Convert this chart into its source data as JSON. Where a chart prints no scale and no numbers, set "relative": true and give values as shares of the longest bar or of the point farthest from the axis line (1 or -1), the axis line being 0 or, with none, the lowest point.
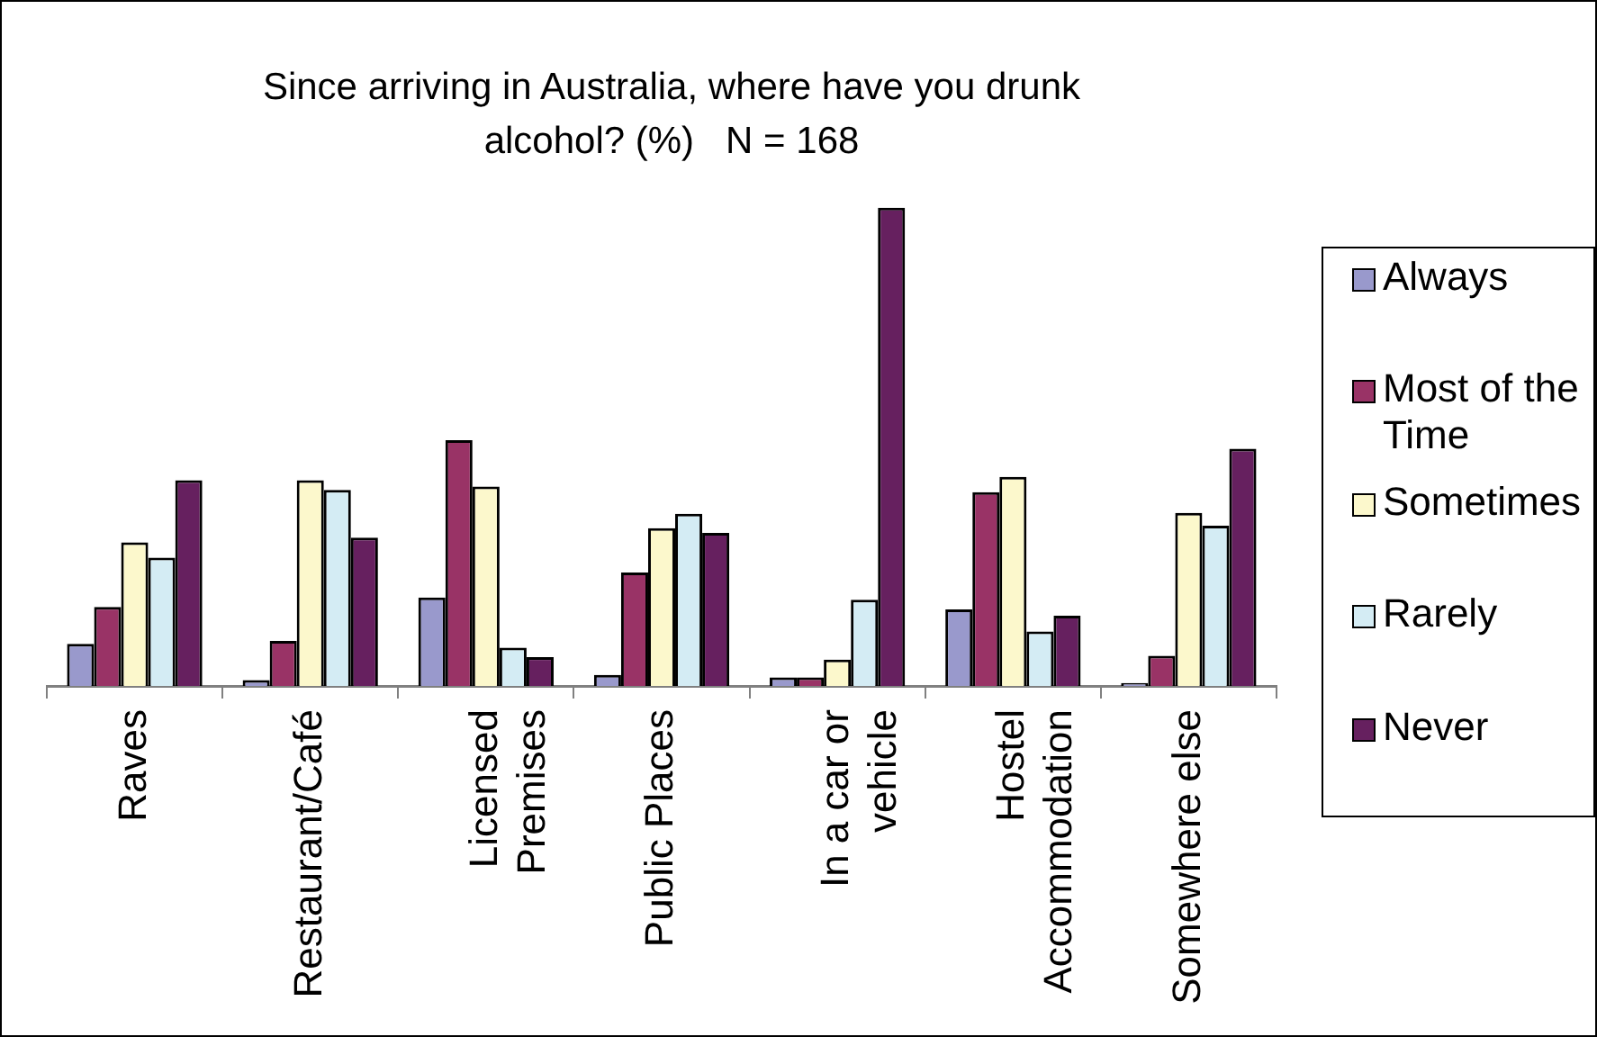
{
  "chart_data": {
    "type": "bar",
    "title": "Since arriving in Australia, where have you drunk alcohol? (%)   N = 168",
    "categories": [
      "Raves",
      "Restaurant/Café",
      "Licensed Premises",
      "Public Places",
      "In a car or vehicle",
      "Hostel Accommodation",
      "Somewhere else"
    ],
    "relative": true,
    "legend": "right",
    "series": [
      {
        "name": "Always",
        "color": "#9999cc",
        "values": [
          0.088,
          0.012,
          0.185,
          0.023,
          0.018,
          0.16,
          0.006
        ]
      },
      {
        "name": "Most of the Time",
        "color": "#993366",
        "values": [
          0.165,
          0.094,
          0.514,
          0.237,
          0.018,
          0.405,
          0.063
        ]
      },
      {
        "name": "Sometimes",
        "color": "#fcf8cc",
        "values": [
          0.3,
          0.43,
          0.417,
          0.33,
          0.055,
          0.437,
          0.362
        ]
      },
      {
        "name": "Rarely",
        "color": "#d4ecf4",
        "values": [
          0.268,
          0.41,
          0.08,
          0.36,
          0.18,
          0.114,
          0.335
        ]
      },
      {
        "name": "Never",
        "color": "#66205f",
        "values": [
          0.43,
          0.31,
          0.06,
          0.32,
          1,
          0.147,
          0.496
        ]
      }
    ]
  }
}
